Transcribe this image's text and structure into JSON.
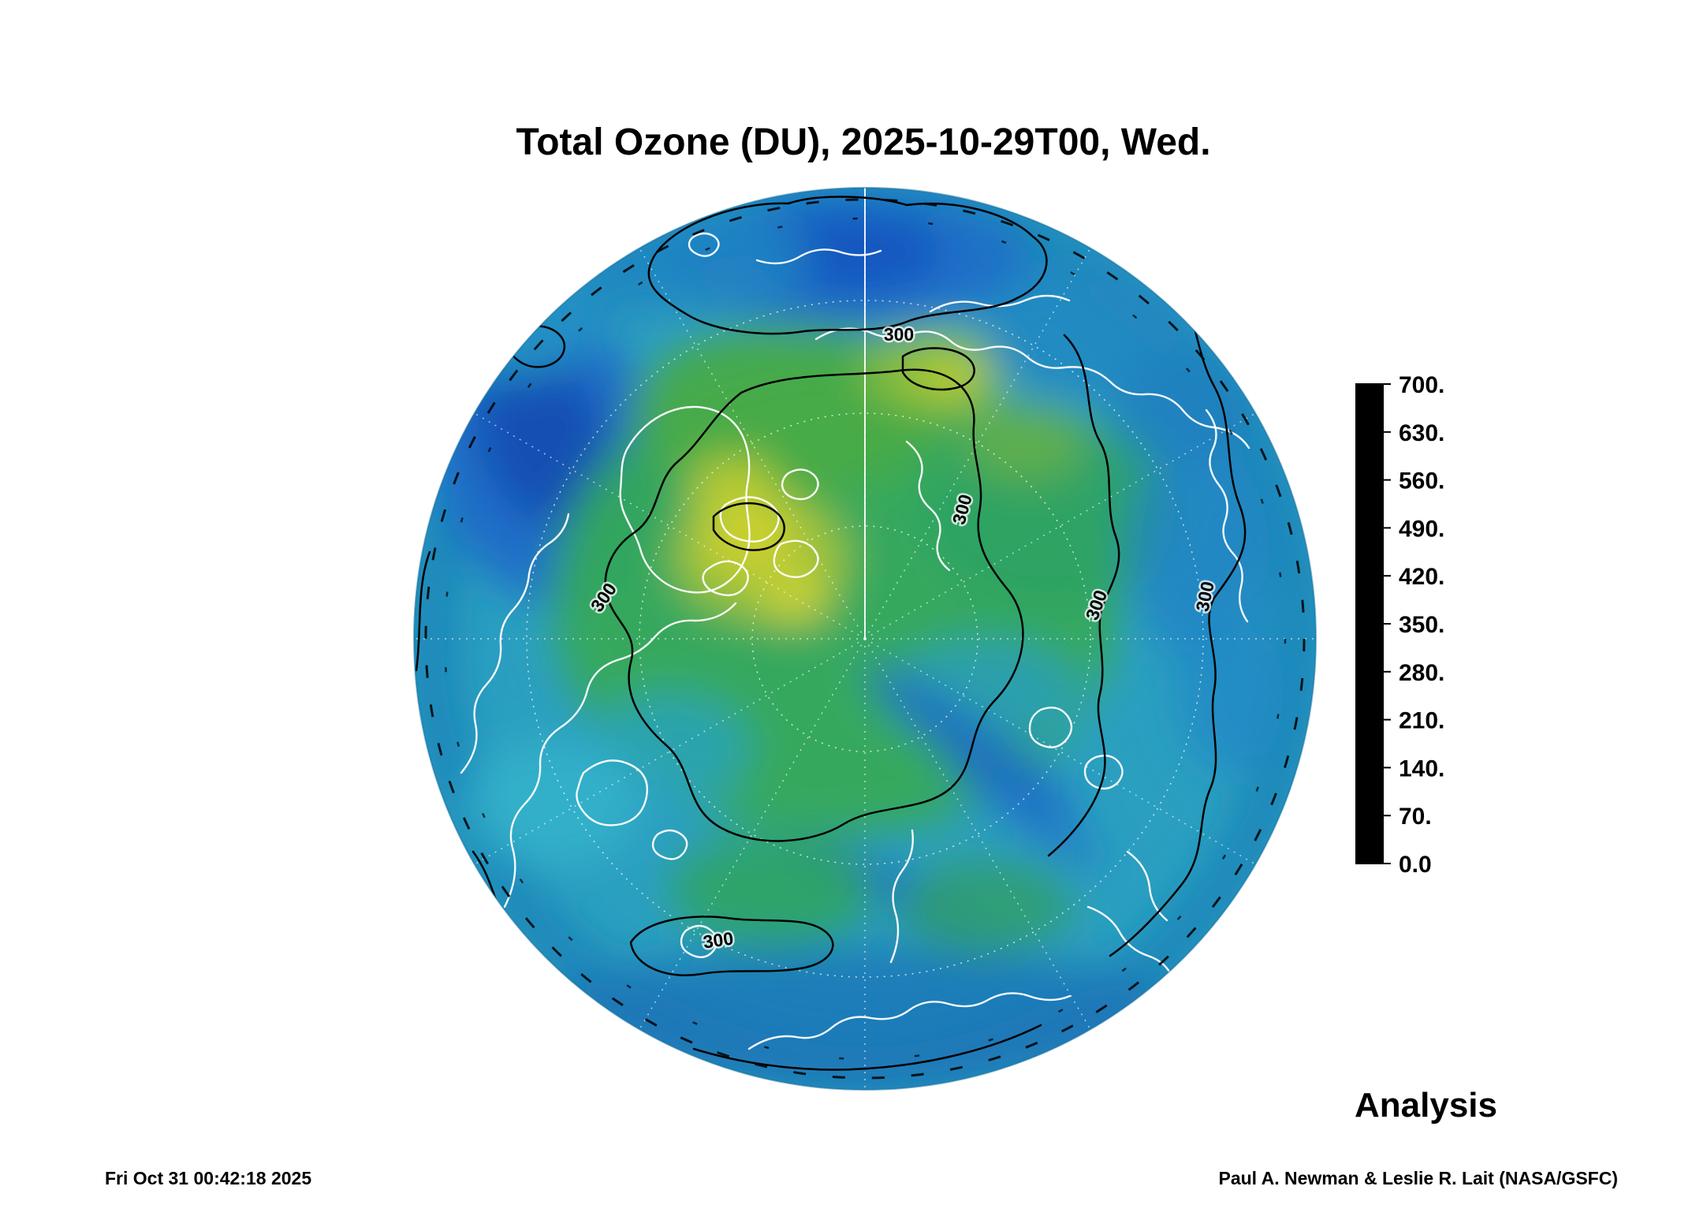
{
  "title": "Total Ozone (DU), 2025-10-29T00, Wed.",
  "annotations": {
    "analysis": "Analysis"
  },
  "footer": {
    "generated": "Fri Oct 31 00:42:18 2025",
    "credit": "Paul A. Newman & Leslie R. Lait (NASA/GSFC)"
  },
  "map": {
    "contour_label": "300",
    "key_colors": {
      "base_teal": "#2b9fc0",
      "high_green": "#35a958",
      "peak_yellow": "#ccd02f",
      "low_blue": "#1c6cc8",
      "coastline": "#ffffff",
      "contour": "#000000"
    }
  },
  "colorbar": {
    "ticks": [
      "700.",
      "630.",
      "560.",
      "490.",
      "420.",
      "350.",
      "280.",
      "210.",
      "140.",
      "70.",
      "0.0"
    ],
    "colormap": [
      {
        "t": 0.0,
        "color": "#000000"
      },
      {
        "t": 0.04,
        "color": "#140418"
      },
      {
        "t": 0.1,
        "color": "#3c0a52"
      },
      {
        "t": 0.15,
        "color": "#640c8e"
      },
      {
        "t": 0.2,
        "color": "#8f0ab4"
      },
      {
        "t": 0.24,
        "color": "#6d1ec6"
      },
      {
        "t": 0.28,
        "color": "#3c30d2"
      },
      {
        "t": 0.3,
        "color": "#2a47d8"
      },
      {
        "t": 0.34,
        "color": "#1e6ed2"
      },
      {
        "t": 0.38,
        "color": "#2492c8"
      },
      {
        "t": 0.4,
        "color": "#2ba4c2"
      },
      {
        "t": 0.45,
        "color": "#31ad8e"
      },
      {
        "t": 0.5,
        "color": "#36ab52"
      },
      {
        "t": 0.56,
        "color": "#72b83c"
      },
      {
        "t": 0.6,
        "color": "#a8c633"
      },
      {
        "t": 0.66,
        "color": "#dcd82e"
      },
      {
        "t": 0.7,
        "color": "#ece24a"
      },
      {
        "t": 0.75,
        "color": "#eeb27c"
      },
      {
        "t": 0.8,
        "color": "#de54c8"
      },
      {
        "t": 0.86,
        "color": "#ea86d8"
      },
      {
        "t": 0.9,
        "color": "#f2a8e4"
      },
      {
        "t": 0.96,
        "color": "#fadef2"
      },
      {
        "t": 1.0,
        "color": "#ffffff"
      }
    ]
  },
  "chart_data": {
    "type": "heatmap",
    "title": "Total Ozone (DU), 2025-10-29T00, Wed.",
    "variable": "Total Ozone",
    "units": "DU",
    "datetime": "2025-10-29T00",
    "weekday": "Wed.",
    "projection": "Northern Hemisphere polar stereographic (orthographic-style polar view)",
    "product_label": "Analysis",
    "colorbar_range": [
      0.0,
      700.0
    ],
    "colorbar_tick_values": [
      700,
      630,
      560,
      490,
      420,
      350,
      280,
      210,
      140,
      70,
      0
    ],
    "labeled_contour_levels_DU": [
      300
    ],
    "overlays": [
      "white coastlines",
      "white dotted latitude/longitude graticule",
      "black ozone contours"
    ],
    "approx_regional_values_DU": [
      {
        "region": "dark-blue trough, top center of disk",
        "value": 220
      },
      {
        "region": "dark-blue low, upper-left (North Atlantic sector)",
        "value": 210
      },
      {
        "region": "broad green polar cap (central disk)",
        "value": 360
      },
      {
        "region": "yellow-green maxima near center-left of cap",
        "value": 430
      },
      {
        "region": "teal mid-latitude ring toward rim",
        "value": 260
      },
      {
        "region": "narrow dark-blue streaks, lower-right sector",
        "value": 220
      },
      {
        "region": "outer rim band",
        "value": 240
      }
    ]
  }
}
